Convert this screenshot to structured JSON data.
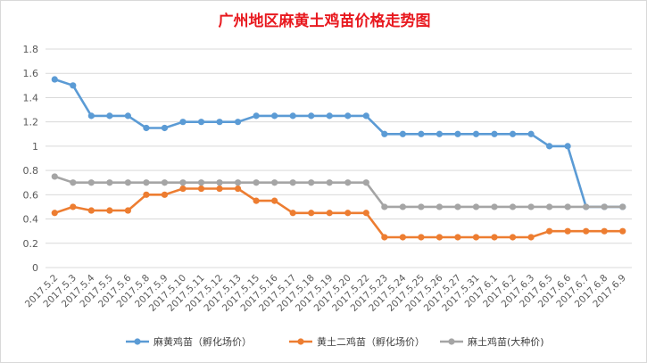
{
  "chart_data": {
    "type": "line",
    "title": "广州地区麻黄土鸡苗价格走势图",
    "title_color": "#e8191f",
    "categories": [
      "2017.5.2",
      "2017.5.3",
      "2017.5.4",
      "2017.5.5",
      "2017.5.6",
      "2017.5.8",
      "2017.5.9",
      "2017.5.10",
      "2017.5.11",
      "2017.5.12",
      "2017.5.13",
      "2017.5.15",
      "2017.5.16",
      "2017.5.17",
      "2017.5.18",
      "2017.5.19",
      "2017.5.20",
      "2017.5.22",
      "2017.5.23",
      "2017.5.24",
      "2017.5.25",
      "2017.5.26",
      "2017.5.27",
      "2017.5.31",
      "2017.6.1",
      "2017.6.2",
      "2017.6.3",
      "2017.6.5",
      "2017.6.6",
      "2017.6.7",
      "2017.6.8",
      "2017.6.9"
    ],
    "series": [
      {
        "name": "麻黄鸡苗（孵化场价）",
        "color": "#5b9bd5",
        "values": [
          1.55,
          1.5,
          1.25,
          1.25,
          1.25,
          1.15,
          1.15,
          1.2,
          1.2,
          1.2,
          1.2,
          1.25,
          1.25,
          1.25,
          1.25,
          1.25,
          1.25,
          1.25,
          1.1,
          1.1,
          1.1,
          1.1,
          1.1,
          1.1,
          1.1,
          1.1,
          1.1,
          1.0,
          1.0,
          0.5,
          0.5,
          0.5
        ]
      },
      {
        "name": "黄土二鸡苗（孵化场价）",
        "color": "#ed7d31",
        "values": [
          0.45,
          0.5,
          0.47,
          0.47,
          0.47,
          0.6,
          0.6,
          0.65,
          0.65,
          0.65,
          0.65,
          0.55,
          0.55,
          0.45,
          0.45,
          0.45,
          0.45,
          0.45,
          0.25,
          0.25,
          0.25,
          0.25,
          0.25,
          0.25,
          0.25,
          0.25,
          0.25,
          0.3,
          0.3,
          0.3,
          0.3,
          0.3
        ]
      },
      {
        "name": "麻土鸡苗(大种价)",
        "color": "#a5a5a5",
        "values": [
          0.75,
          0.7,
          0.7,
          0.7,
          0.7,
          0.7,
          0.7,
          0.7,
          0.7,
          0.7,
          0.7,
          0.7,
          0.7,
          0.7,
          0.7,
          0.7,
          0.7,
          0.7,
          0.5,
          0.5,
          0.5,
          0.5,
          0.5,
          0.5,
          0.5,
          0.5,
          0.5,
          0.5,
          0.5,
          0.5,
          0.5,
          0.5
        ]
      }
    ],
    "ylim": [
      0,
      1.8
    ],
    "yticks": [
      "0",
      "0.2",
      "0.4",
      "0.6",
      "0.8",
      "1",
      "1.2",
      "1.4",
      "1.6",
      "1.8"
    ],
    "grid": true,
    "legend_position": "bottom",
    "xlabel": "",
    "ylabel": ""
  }
}
